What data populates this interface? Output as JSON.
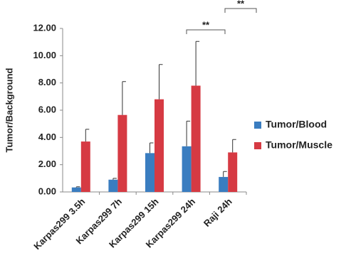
{
  "chart_data": {
    "type": "bar",
    "y_label": "Tumor/Background",
    "categories": [
      "Karpas299 3.5h",
      "Karpas299 7h",
      "Karpas299 15h",
      "Karpas299 24h",
      "Raji 24h"
    ],
    "series": [
      {
        "name": "Tumor/Blood",
        "color": "#3a7dc0",
        "values": [
          0.33,
          0.9,
          2.85,
          3.35,
          1.1
        ],
        "errors": [
          0.05,
          0.1,
          0.75,
          1.85,
          0.4
        ]
      },
      {
        "name": "Tumor/Muscle",
        "color": "#d63a43",
        "values": [
          3.7,
          5.65,
          6.8,
          7.8,
          2.9
        ],
        "errors": [
          0.9,
          2.45,
          2.55,
          3.25,
          0.95
        ]
      }
    ],
    "ylim": [
      0,
      12
    ],
    "yticks": [
      {
        "value": 0,
        "label": "0.00"
      },
      {
        "value": 2,
        "label": "2.00"
      },
      {
        "value": 4,
        "label": "4.00"
      },
      {
        "value": 6,
        "label": "6.00"
      },
      {
        "value": 8,
        "label": "8.00"
      },
      {
        "value": 10,
        "label": "10.00"
      },
      {
        "value": 12,
        "label": "12.00"
      }
    ],
    "legend": "right",
    "annotations": [
      "**",
      "**"
    ]
  }
}
